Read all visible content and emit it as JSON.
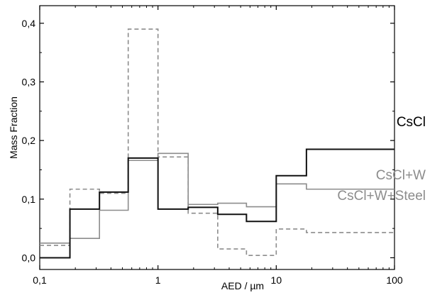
{
  "chart_data": {
    "type": "line",
    "step": true,
    "xscale": "log",
    "xlim": [
      0.1,
      100
    ],
    "ylim": [
      -0.02,
      0.43
    ],
    "xlabel": "AED / µm",
    "ylabel": "Mass Fraction",
    "x_tick_labels": [
      "0,1",
      "1",
      "10",
      "100"
    ],
    "x_tick_values": [
      0.1,
      1,
      10,
      100
    ],
    "y_tick_labels": [
      "0,0",
      "0,1",
      "0,2",
      "0,3",
      "0,4"
    ],
    "y_tick_values": [
      0.0,
      0.1,
      0.2,
      0.3,
      0.4
    ],
    "grid": false,
    "legend": "right, labels placed next to series ends",
    "bin_edges": [
      0.1,
      0.18,
      0.32,
      0.56,
      1.0,
      1.8,
      3.2,
      5.6,
      10,
      18,
      100
    ],
    "series": [
      {
        "name": "CsCl",
        "color": "#111111",
        "dash": "solid",
        "values": [
          0.0,
          0.083,
          0.112,
          0.17,
          0.083,
          0.086,
          0.074,
          0.062,
          0.14,
          0.185
        ]
      },
      {
        "name": "CsCl+W",
        "color": "#8c8c8c",
        "dash": "solid",
        "values": [
          0.025,
          0.033,
          0.081,
          0.166,
          0.178,
          0.091,
          0.093,
          0.087,
          0.126,
          0.117
        ]
      },
      {
        "name": "CsCl+W+Steel",
        "color": "#8c8c8c",
        "dash": "dashed",
        "values": [
          0.021,
          0.117,
          0.11,
          0.39,
          0.172,
          0.076,
          0.015,
          0.004,
          0.049,
          0.043
        ]
      }
    ]
  }
}
